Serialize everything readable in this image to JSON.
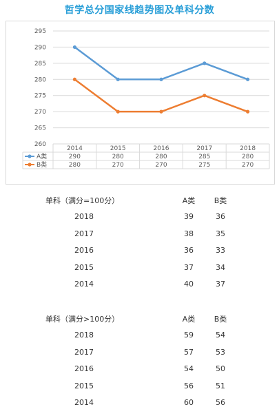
{
  "title": "哲学总分国家线趋势图及单科分数",
  "chart_data": {
    "type": "line",
    "categories": [
      "2014",
      "2015",
      "2016",
      "2017",
      "2018"
    ],
    "series": [
      {
        "name": "A类",
        "values": [
          290,
          280,
          280,
          285,
          280
        ],
        "color": "#5b9bd5"
      },
      {
        "name": "B类",
        "values": [
          280,
          270,
          270,
          275,
          270
        ],
        "color": "#ed7d31"
      }
    ],
    "ylim": [
      260,
      295
    ],
    "yticks": [
      260,
      265,
      270,
      275,
      280,
      285,
      290,
      295
    ],
    "grid": true,
    "data_table": true
  },
  "tables": [
    {
      "header": "单科（满分=100分）",
      "col_a": "A类",
      "col_b": "B类",
      "rows": [
        {
          "year": "2018",
          "a": "39",
          "b": "36"
        },
        {
          "year": "2017",
          "a": "38",
          "b": "35"
        },
        {
          "year": "2016",
          "a": "36",
          "b": "33"
        },
        {
          "year": "2015",
          "a": "37",
          "b": "34"
        },
        {
          "year": "2014",
          "a": "40",
          "b": "37"
        }
      ]
    },
    {
      "header": "单科（满分>100分）",
      "col_a": "A类",
      "col_b": "B类",
      "rows": [
        {
          "year": "2018",
          "a": "59",
          "b": "54"
        },
        {
          "year": "2017",
          "a": "57",
          "b": "53"
        },
        {
          "year": "2016",
          "a": "54",
          "b": "50"
        },
        {
          "year": "2015",
          "a": "56",
          "b": "51"
        },
        {
          "year": "2014",
          "a": "60",
          "b": "56"
        }
      ]
    }
  ]
}
